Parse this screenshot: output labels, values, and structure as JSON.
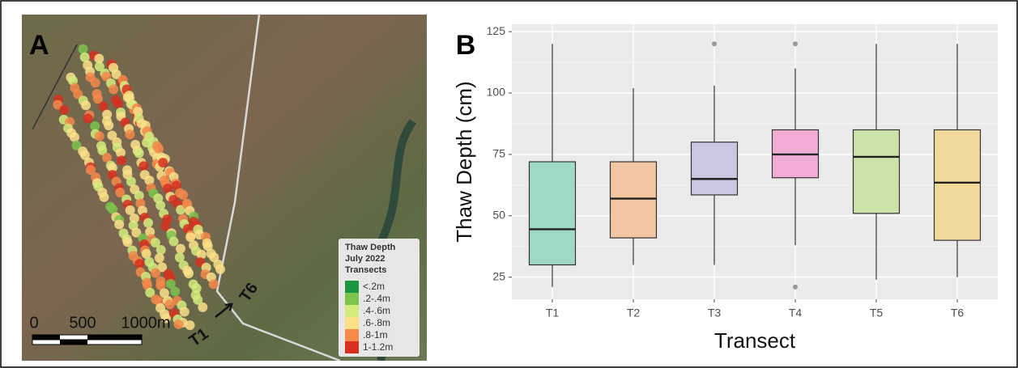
{
  "panel_a": {
    "label": "A",
    "legend": {
      "title": [
        "Thaw Depth",
        "July 2022",
        "Transects"
      ],
      "items": [
        {
          "label": "<.2m",
          "color": "#1a9641"
        },
        {
          "label": ".2-.4m",
          "color": "#7dc44e"
        },
        {
          "label": ".4-.6m",
          "color": "#d4ec7e"
        },
        {
          "label": ".6-.8m",
          "color": "#fbe08a"
        },
        {
          "label": ".8-1m",
          "color": "#f58a4b"
        },
        {
          "label": "1-1.2m",
          "color": "#d7301f"
        }
      ]
    },
    "scale": [
      "0",
      "500",
      "1000m"
    ],
    "transect_labels": [
      "T1",
      "T6"
    ]
  },
  "chart_data": {
    "type": "box",
    "label": "B",
    "x_label": "Transect",
    "y_label": "Thaw Depth (cm)",
    "categories": [
      "T1",
      "T2",
      "T3",
      "T4",
      "T5",
      "T6"
    ],
    "boxes": [
      {
        "whisker_low": 21,
        "q1": 30,
        "median": 44.5,
        "q3": 72,
        "whisker_high": 120,
        "outliers": [],
        "color": "#9fd8c6"
      },
      {
        "whisker_low": 30,
        "q1": 41,
        "median": 57,
        "q3": 72,
        "whisker_high": 102,
        "outliers": [],
        "color": "#f3c6a2"
      },
      {
        "whisker_low": 30,
        "q1": 58.5,
        "median": 65,
        "q3": 80,
        "whisker_high": 103,
        "outliers": [
          120
        ],
        "color": "#cbc7e2"
      },
      {
        "whisker_low": 38,
        "q1": 65.5,
        "median": 75,
        "q3": 85,
        "whisker_high": 110,
        "outliers": [
          120,
          21
        ],
        "color": "#f0acd2"
      },
      {
        "whisker_low": 24,
        "q1": 51,
        "median": 74,
        "q3": 85,
        "whisker_high": 120,
        "outliers": [],
        "color": "#cbe2a9"
      },
      {
        "whisker_low": 25,
        "q1": 40,
        "median": 63.5,
        "q3": 85,
        "whisker_high": 120,
        "outliers": [],
        "color": "#f0d99a"
      }
    ],
    "ylim": [
      16,
      128
    ],
    "yticks": [
      25,
      50,
      75,
      100,
      125
    ],
    "grid": true
  }
}
